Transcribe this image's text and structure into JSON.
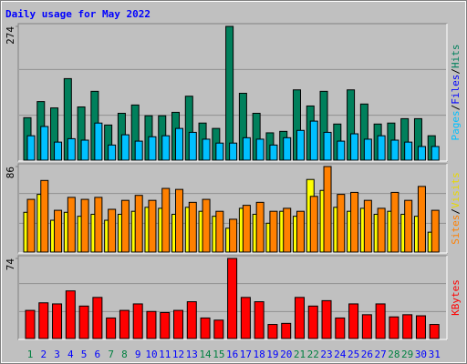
{
  "title": "Daily usage for May 2022",
  "separator": "/",
  "chart_data": [
    {
      "type": "bar",
      "ylim": [
        0,
        274
      ],
      "yticks": [
        274
      ],
      "legend": [
        "Pages",
        "Files",
        "Hits"
      ],
      "legend_colors": [
        "#00c0ff",
        "#0000ff",
        "#00805c"
      ],
      "series": [
        {
          "color": "#00805c",
          "values": [
            87,
            120,
            107,
            167,
            109,
            141,
            72,
            96,
            113,
            91,
            91,
            98,
            131,
            76,
            65,
            274,
            137,
            96,
            56,
            59,
            144,
            111,
            141,
            74,
            144,
            115,
            74,
            76,
            85,
            85,
            50
          ]
        },
        {
          "color": "#00c0ff",
          "values": [
            50,
            69,
            37,
            44,
            41,
            76,
            31,
            52,
            39,
            48,
            50,
            65,
            57,
            43,
            35,
            35,
            46,
            43,
            31,
            46,
            61,
            80,
            57,
            39,
            54,
            43,
            50,
            41,
            37,
            28,
            28
          ]
        }
      ]
    },
    {
      "type": "bar",
      "ylim": [
        0,
        86
      ],
      "yticks": [
        86
      ],
      "legend": [
        "Sites",
        "Visits"
      ],
      "legend_colors": [
        "#ff8000",
        "#e8d800"
      ],
      "series": [
        {
          "color": "#ffff00",
          "values": [
            40,
            58,
            32,
            40,
            36,
            38,
            32,
            38,
            41,
            45,
            44,
            38,
            45,
            41,
            36,
            24,
            44,
            38,
            29,
            41,
            36,
            73,
            62,
            45,
            41,
            44,
            38,
            41,
            38,
            36,
            20
          ]
        },
        {
          "color": "#ff8000",
          "values": [
            53,
            72,
            42,
            55,
            53,
            55,
            43,
            52,
            57,
            52,
            64,
            63,
            50,
            53,
            41,
            33,
            47,
            50,
            41,
            44,
            41,
            56,
            86,
            58,
            60,
            52,
            44,
            60,
            52,
            66,
            42
          ]
        }
      ]
    },
    {
      "type": "bar",
      "ylim": [
        0,
        74
      ],
      "yticks": [
        74
      ],
      "legend": [
        "KBytes"
      ],
      "legend_colors": [
        "#ff0000"
      ],
      "categories": [
        "1",
        "2",
        "3",
        "4",
        "5",
        "6",
        "7",
        "8",
        "9",
        "10",
        "11",
        "12",
        "13",
        "14",
        "15",
        "16",
        "17",
        "18",
        "19",
        "20",
        "21",
        "22",
        "23",
        "24",
        "25",
        "26",
        "27",
        "28",
        "29",
        "30",
        "31"
      ],
      "weekend": [
        0,
        6,
        7,
        13,
        14,
        20,
        21,
        27,
        28
      ],
      "weekday_color": "#0000ff",
      "weekend_color": "#008040",
      "series": [
        {
          "color": "#ff0000",
          "values": [
            26,
            33,
            32,
            44,
            30,
            38,
            19,
            26,
            32,
            25,
            24,
            26,
            34,
            19,
            17,
            74,
            38,
            34,
            13,
            14,
            38,
            30,
            35,
            19,
            32,
            22,
            32,
            20,
            22,
            21,
            13
          ]
        }
      ]
    }
  ]
}
